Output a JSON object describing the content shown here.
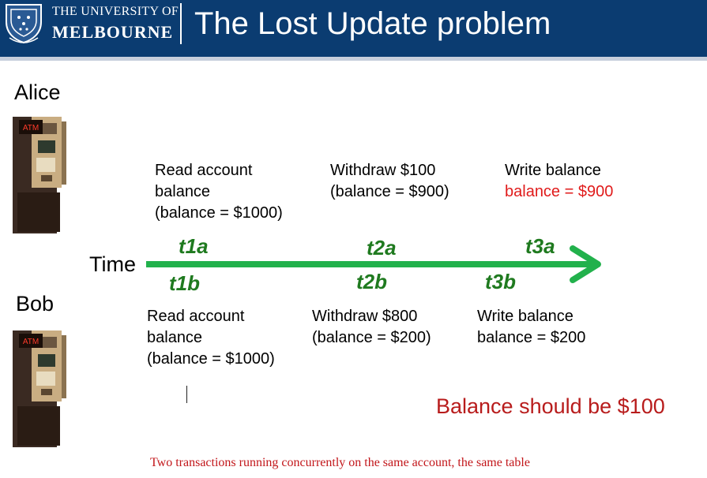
{
  "header": {
    "university_line1": "THE UNIVERSITY OF",
    "university_line2": "MELBOURNE",
    "title": "The Lost Update problem"
  },
  "alice": {
    "name": "Alice",
    "atm_label": "ATM",
    "steps": [
      {
        "text": "Read account\nbalance\n(balance = $1000)"
      },
      {
        "text": "Withdraw $100\n(balance = $900)"
      },
      {
        "text": "Write balance"
      }
    ],
    "write_result": "balance = $900"
  },
  "bob": {
    "name": "Bob",
    "atm_label": "ATM",
    "steps": [
      {
        "text": "Read account\nbalance\n(balance = $1000)"
      },
      {
        "text": "Withdraw $800\n(balance = $200)"
      },
      {
        "text": "Write balance\nbalance = $200"
      }
    ]
  },
  "timeline": {
    "label": "Time",
    "top_labels": [
      "t1a",
      "t2a",
      "t3a"
    ],
    "bottom_labels": [
      "t1b",
      "t2b",
      "t3b"
    ],
    "arrow_color": "#22b14c",
    "label_color": "#1f7a1f"
  },
  "conclusion": "Balance should be $100",
  "caption": "Two transactions running concurrently on the same account, the same table",
  "colors": {
    "header_bg": "#0b3c71",
    "highlight_red": "#e01b1b",
    "conclusion_red": "#b81c1c"
  }
}
